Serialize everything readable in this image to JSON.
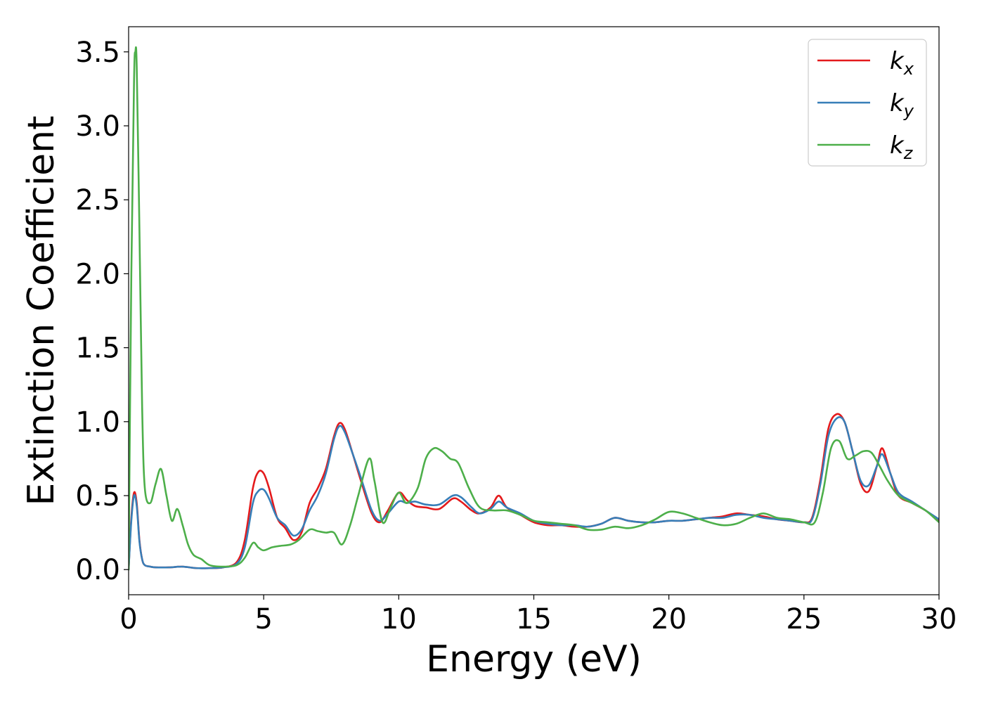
{
  "chart_data": {
    "type": "line",
    "xlabel": "Energy (eV)",
    "ylabel": "Extinction Coefficient",
    "xlim": [
      0,
      30
    ],
    "ylim": [
      -0.17,
      3.67
    ],
    "xticks": [
      0,
      5,
      10,
      15,
      20,
      25,
      30
    ],
    "xtick_labels": [
      "0",
      "5",
      "10",
      "15",
      "20",
      "25",
      "30"
    ],
    "yticks": [
      0.0,
      0.5,
      1.0,
      1.5,
      2.0,
      2.5,
      3.0,
      3.5
    ],
    "ytick_labels": [
      "0.0",
      "0.5",
      "1.0",
      "1.5",
      "2.0",
      "2.5",
      "3.0",
      "3.5"
    ],
    "grid": false,
    "legend_position": "top-right",
    "series": [
      {
        "name": "k_x",
        "label_main": "k",
        "label_sub": "x",
        "color": "#e41a1c",
        "x": [
          0,
          0.1,
          0.2,
          0.3,
          0.4,
          0.5,
          0.6,
          0.8,
          1.0,
          1.5,
          2.0,
          2.5,
          3.0,
          3.5,
          4.0,
          4.3,
          4.6,
          4.8,
          5.0,
          5.2,
          5.5,
          5.8,
          6.1,
          6.4,
          6.7,
          7.0,
          7.3,
          7.6,
          7.8,
          8.0,
          8.3,
          8.6,
          9.0,
          9.3,
          9.6,
          10.0,
          10.3,
          10.6,
          11.0,
          11.5,
          12.0,
          12.3,
          12.7,
          13.0,
          13.4,
          13.7,
          14.0,
          14.5,
          15.0,
          15.5,
          16.0,
          16.5,
          17.0,
          17.5,
          18.0,
          18.5,
          19.0,
          19.5,
          20.0,
          20.5,
          21.0,
          21.5,
          22.0,
          22.5,
          23.0,
          23.5,
          24.0,
          24.5,
          25.0,
          25.3,
          25.6,
          25.9,
          26.2,
          26.5,
          26.8,
          27.1,
          27.4,
          27.7,
          27.9,
          28.2,
          28.5,
          29.0,
          29.5,
          30.0
        ],
        "y": [
          0.0,
          0.35,
          0.52,
          0.45,
          0.2,
          0.07,
          0.03,
          0.02,
          0.015,
          0.015,
          0.02,
          0.01,
          0.01,
          0.015,
          0.05,
          0.2,
          0.55,
          0.66,
          0.65,
          0.55,
          0.35,
          0.28,
          0.2,
          0.25,
          0.45,
          0.55,
          0.68,
          0.9,
          0.99,
          0.95,
          0.78,
          0.6,
          0.38,
          0.32,
          0.4,
          0.52,
          0.47,
          0.43,
          0.42,
          0.41,
          0.48,
          0.46,
          0.4,
          0.38,
          0.42,
          0.5,
          0.42,
          0.37,
          0.32,
          0.3,
          0.3,
          0.29,
          0.29,
          0.31,
          0.35,
          0.33,
          0.32,
          0.32,
          0.33,
          0.33,
          0.34,
          0.35,
          0.36,
          0.38,
          0.37,
          0.36,
          0.34,
          0.33,
          0.32,
          0.35,
          0.6,
          0.95,
          1.05,
          1.0,
          0.8,
          0.58,
          0.53,
          0.7,
          0.82,
          0.65,
          0.5,
          0.45,
          0.4,
          0.33
        ]
      },
      {
        "name": "k_y",
        "label_main": "k",
        "label_sub": "y",
        "color": "#377eb8",
        "x": [
          0,
          0.1,
          0.2,
          0.3,
          0.4,
          0.5,
          0.6,
          0.8,
          1.0,
          1.5,
          2.0,
          2.5,
          3.0,
          3.5,
          4.0,
          4.3,
          4.6,
          4.8,
          5.0,
          5.2,
          5.5,
          5.8,
          6.1,
          6.4,
          6.7,
          7.0,
          7.3,
          7.6,
          7.8,
          8.0,
          8.3,
          8.6,
          9.0,
          9.3,
          9.6,
          10.0,
          10.3,
          10.6,
          11.0,
          11.5,
          12.0,
          12.3,
          12.7,
          13.0,
          13.4,
          13.7,
          14.0,
          14.5,
          15.0,
          15.5,
          16.0,
          16.5,
          17.0,
          17.5,
          18.0,
          18.5,
          19.0,
          19.5,
          20.0,
          20.5,
          21.0,
          21.5,
          22.0,
          22.5,
          23.0,
          23.5,
          24.0,
          24.5,
          25.0,
          25.3,
          25.6,
          25.9,
          26.2,
          26.5,
          26.8,
          27.1,
          27.4,
          27.7,
          27.9,
          28.2,
          28.5,
          29.0,
          29.5,
          30.0
        ],
        "y": [
          0.0,
          0.33,
          0.5,
          0.43,
          0.19,
          0.07,
          0.03,
          0.02,
          0.015,
          0.015,
          0.02,
          0.01,
          0.01,
          0.015,
          0.04,
          0.15,
          0.45,
          0.53,
          0.54,
          0.48,
          0.35,
          0.3,
          0.23,
          0.27,
          0.4,
          0.5,
          0.65,
          0.88,
          0.97,
          0.93,
          0.78,
          0.62,
          0.4,
          0.33,
          0.38,
          0.46,
          0.45,
          0.46,
          0.44,
          0.44,
          0.5,
          0.49,
          0.42,
          0.38,
          0.41,
          0.46,
          0.42,
          0.38,
          0.33,
          0.31,
          0.3,
          0.3,
          0.29,
          0.31,
          0.35,
          0.33,
          0.32,
          0.32,
          0.33,
          0.33,
          0.34,
          0.35,
          0.35,
          0.37,
          0.37,
          0.35,
          0.34,
          0.33,
          0.32,
          0.34,
          0.57,
          0.9,
          1.02,
          1.0,
          0.8,
          0.6,
          0.57,
          0.7,
          0.78,
          0.65,
          0.52,
          0.46,
          0.4,
          0.34
        ]
      },
      {
        "name": "k_z",
        "label_main": "k",
        "label_sub": "z",
        "color": "#4daf4a",
        "x": [
          0,
          0.1,
          0.2,
          0.25,
          0.3,
          0.4,
          0.5,
          0.6,
          0.8,
          1.0,
          1.2,
          1.4,
          1.6,
          1.8,
          2.0,
          2.2,
          2.4,
          2.7,
          3.0,
          3.5,
          4.0,
          4.3,
          4.6,
          4.8,
          5.0,
          5.3,
          5.6,
          6.0,
          6.3,
          6.7,
          7.0,
          7.3,
          7.6,
          7.9,
          8.2,
          8.5,
          8.9,
          9.1,
          9.4,
          9.7,
          10.0,
          10.3,
          10.7,
          11.0,
          11.3,
          11.6,
          11.9,
          12.2,
          12.6,
          13.0,
          13.5,
          14.0,
          14.5,
          15.0,
          15.5,
          16.0,
          16.5,
          17.0,
          17.5,
          18.0,
          18.5,
          19.0,
          19.5,
          20.0,
          20.5,
          21.0,
          21.5,
          22.0,
          22.5,
          23.0,
          23.5,
          24.0,
          24.5,
          25.0,
          25.4,
          25.7,
          26.0,
          26.3,
          26.6,
          26.9,
          27.2,
          27.5,
          27.8,
          28.1,
          28.5,
          29.0,
          29.5,
          30.0
        ],
        "y": [
          0.0,
          2.0,
          3.3,
          3.5,
          3.4,
          2.3,
          1.1,
          0.55,
          0.45,
          0.58,
          0.68,
          0.5,
          0.33,
          0.41,
          0.3,
          0.17,
          0.1,
          0.07,
          0.03,
          0.02,
          0.03,
          0.08,
          0.18,
          0.15,
          0.13,
          0.15,
          0.16,
          0.17,
          0.2,
          0.27,
          0.26,
          0.25,
          0.25,
          0.17,
          0.3,
          0.5,
          0.75,
          0.6,
          0.32,
          0.42,
          0.52,
          0.45,
          0.55,
          0.75,
          0.82,
          0.8,
          0.75,
          0.72,
          0.55,
          0.42,
          0.4,
          0.4,
          0.37,
          0.33,
          0.32,
          0.31,
          0.3,
          0.27,
          0.27,
          0.29,
          0.28,
          0.3,
          0.34,
          0.39,
          0.38,
          0.35,
          0.32,
          0.3,
          0.31,
          0.35,
          0.38,
          0.35,
          0.34,
          0.32,
          0.32,
          0.52,
          0.82,
          0.87,
          0.75,
          0.77,
          0.8,
          0.79,
          0.7,
          0.6,
          0.5,
          0.45,
          0.4,
          0.32
        ]
      }
    ]
  }
}
